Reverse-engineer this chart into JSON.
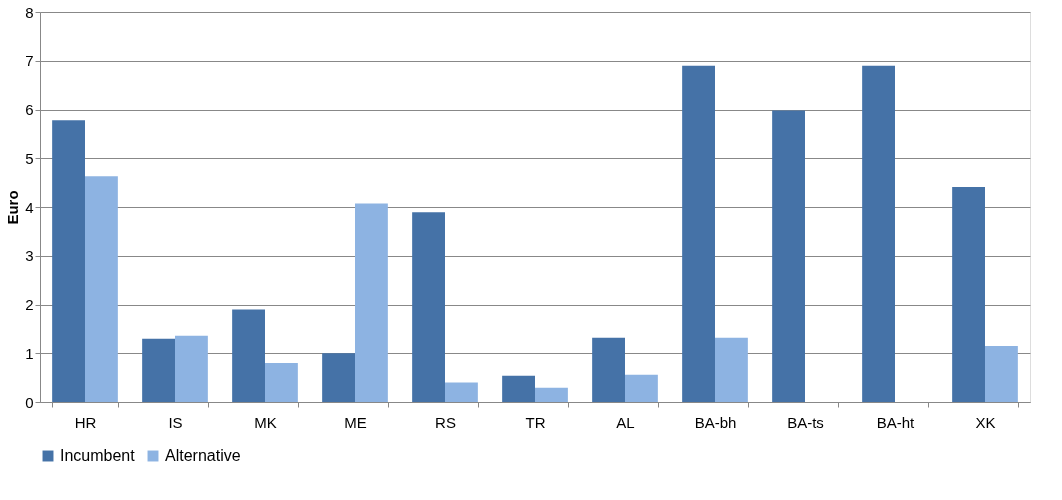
{
  "chart_data": {
    "type": "bar",
    "ylabel": "Euro",
    "categories": [
      "HR",
      "IS",
      "MK",
      "ME",
      "RS",
      "TR",
      "AL",
      "BA-bh",
      "BA-ts",
      "BA-ht",
      "XK"
    ],
    "series": [
      {
        "name": "Incumbent",
        "color": "#4572a7",
        "values": [
          5.78,
          1.3,
          1.9,
          1.0,
          3.89,
          0.54,
          1.32,
          6.9,
          5.98,
          6.9,
          4.41
        ]
      },
      {
        "name": "Alternative",
        "color": "#8db3e2",
        "values": [
          4.63,
          1.36,
          0.8,
          4.07,
          0.4,
          0.29,
          0.56,
          1.32,
          null,
          null,
          1.15
        ]
      }
    ],
    "ylim": [
      0,
      8
    ],
    "yticks": [
      0,
      1,
      2,
      3,
      4,
      5,
      6,
      7,
      8
    ],
    "grid": "y",
    "legend": "bottom"
  }
}
